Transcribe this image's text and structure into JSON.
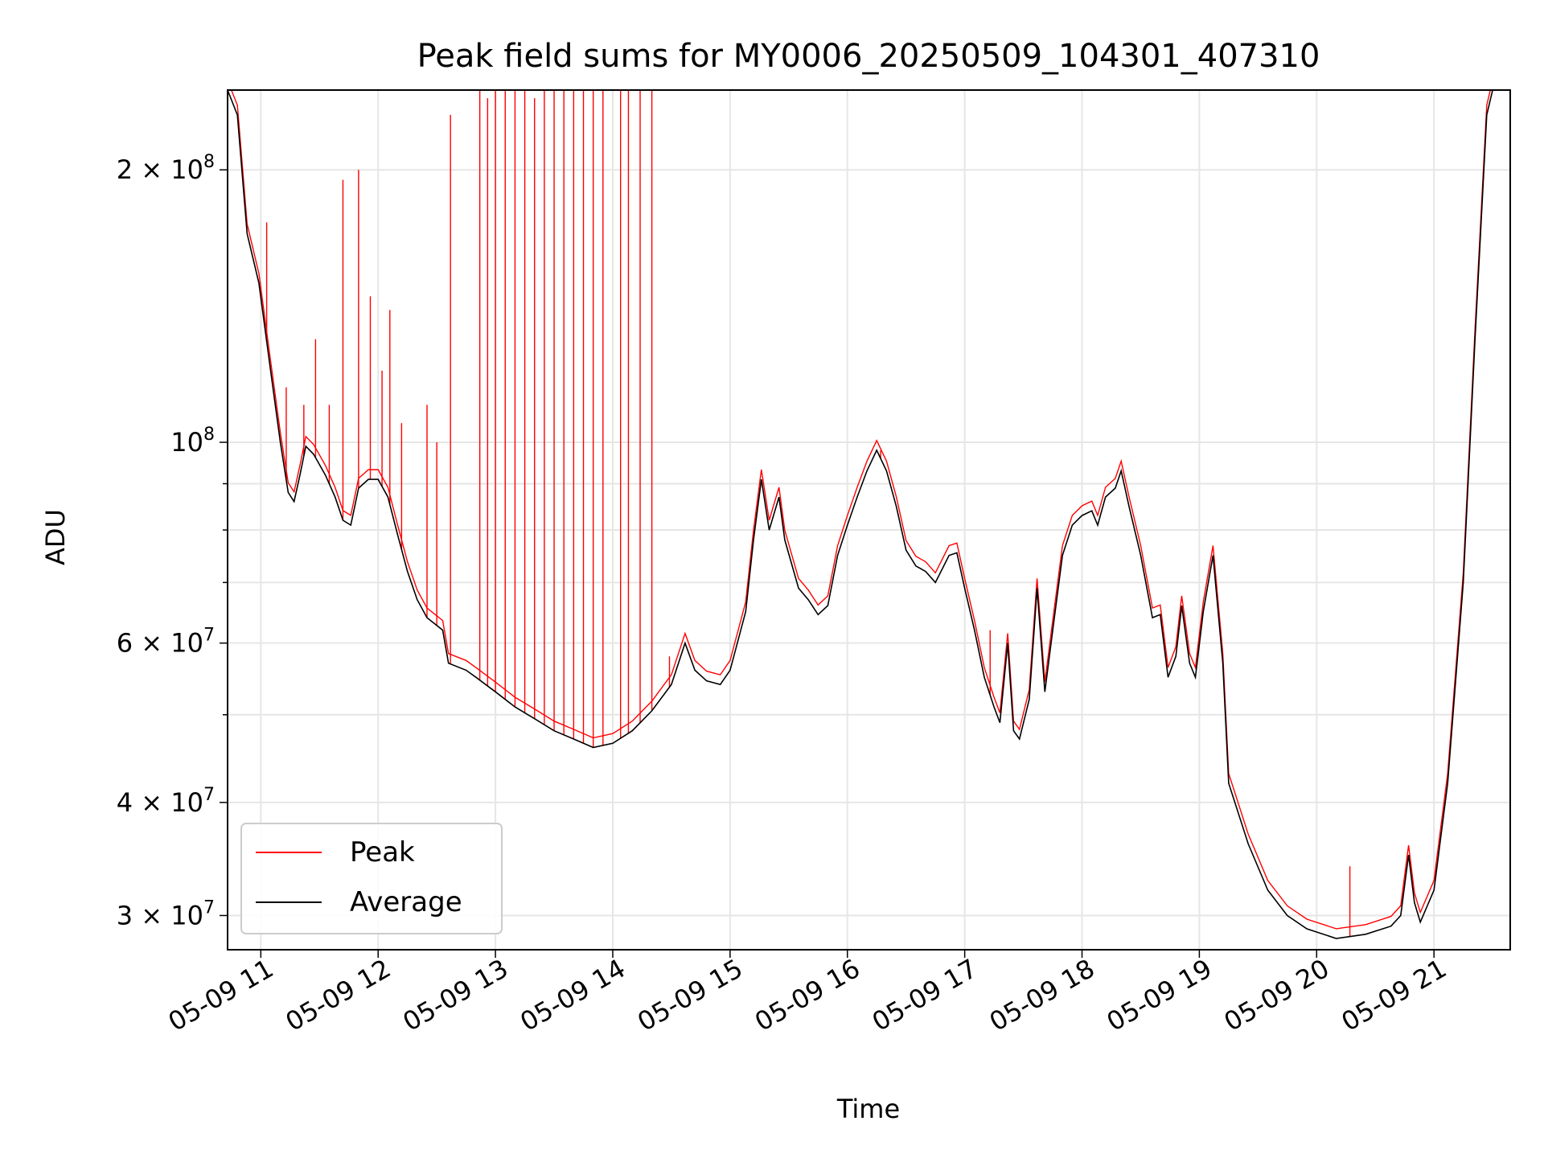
{
  "chart_data": {
    "type": "line",
    "title": "Peak field sums for MY0006_20250509_104301_407310",
    "xlabel": "Time",
    "ylabel": "ADU",
    "yscale": "log",
    "ylim": [
      27500000,
      245000000
    ],
    "xlim": [
      "2025-05-09 10:43:00",
      "2025-05-09 21:39:00"
    ],
    "grid": true,
    "legend_position": "lower-left",
    "x_tick_labels": [
      "05-09 11",
      "05-09 12",
      "05-09 13",
      "05-09 14",
      "05-09 15",
      "05-09 16",
      "05-09 17",
      "05-09 18",
      "05-09 19",
      "05-09 20",
      "05-09 21"
    ],
    "y_tick_labels": [
      {
        "value": 30000000,
        "mant": "3",
        "exp": "7"
      },
      {
        "value": 40000000,
        "mant": "4",
        "exp": "7"
      },
      {
        "value": 60000000,
        "mant": "6",
        "exp": "7"
      },
      {
        "value": 100000000,
        "mant": "",
        "exp": "8"
      },
      {
        "value": 200000000,
        "mant": "2",
        "exp": "8"
      }
    ],
    "series": [
      {
        "name": "Average",
        "color": "#000000",
        "points": [
          [
            "2025-05-09 10:43",
            245000000
          ],
          [
            "2025-05-09 10:48",
            230000000
          ],
          [
            "2025-05-09 10:53",
            170000000
          ],
          [
            "2025-05-09 10:59",
            150000000
          ],
          [
            "2025-05-09 11:05",
            120000000
          ],
          [
            "2025-05-09 11:10",
            100000000
          ],
          [
            "2025-05-09 11:14",
            88000000
          ],
          [
            "2025-05-09 11:17",
            86000000
          ],
          [
            "2025-05-09 11:20",
            92000000
          ],
          [
            "2025-05-09 11:23",
            99000000
          ],
          [
            "2025-05-09 11:27",
            97000000
          ],
          [
            "2025-05-09 11:33",
            92000000
          ],
          [
            "2025-05-09 11:38",
            87000000
          ],
          [
            "2025-05-09 11:42",
            82000000
          ],
          [
            "2025-05-09 11:46",
            81000000
          ],
          [
            "2025-05-09 11:50",
            89000000
          ],
          [
            "2025-05-09 11:55",
            91000000
          ],
          [
            "2025-05-09 12:00",
            91000000
          ],
          [
            "2025-05-09 12:05",
            87000000
          ],
          [
            "2025-05-09 12:10",
            79000000
          ],
          [
            "2025-05-09 12:15",
            72000000
          ],
          [
            "2025-05-09 12:20",
            67000000
          ],
          [
            "2025-05-09 12:25",
            64000000
          ],
          [
            "2025-05-09 12:33",
            62000000
          ],
          [
            "2025-05-09 12:36",
            57000000
          ],
          [
            "2025-05-09 12:45",
            56000000
          ],
          [
            "2025-05-09 12:50",
            55000000
          ],
          [
            "2025-05-09 13:00",
            53000000
          ],
          [
            "2025-05-09 13:10",
            51000000
          ],
          [
            "2025-05-09 13:20",
            49500000
          ],
          [
            "2025-05-09 13:30",
            48000000
          ],
          [
            "2025-05-09 13:40",
            47000000
          ],
          [
            "2025-05-09 13:50",
            46000000
          ],
          [
            "2025-05-09 14:00",
            46500000
          ],
          [
            "2025-05-09 14:10",
            48000000
          ],
          [
            "2025-05-09 14:20",
            50500000
          ],
          [
            "2025-05-09 14:30",
            54000000
          ],
          [
            "2025-05-09 14:37",
            60000000
          ],
          [
            "2025-05-09 14:42",
            56000000
          ],
          [
            "2025-05-09 14:48",
            54500000
          ],
          [
            "2025-05-09 14:55",
            54000000
          ],
          [
            "2025-05-09 15:00",
            56000000
          ],
          [
            "2025-05-09 15:08",
            65000000
          ],
          [
            "2025-05-09 15:12",
            78000000
          ],
          [
            "2025-05-09 15:16",
            91000000
          ],
          [
            "2025-05-09 15:20",
            80000000
          ],
          [
            "2025-05-09 15:25",
            87000000
          ],
          [
            "2025-05-09 15:28",
            78000000
          ],
          [
            "2025-05-09 15:35",
            69000000
          ],
          [
            "2025-05-09 15:40",
            67000000
          ],
          [
            "2025-05-09 15:45",
            64500000
          ],
          [
            "2025-05-09 15:50",
            66000000
          ],
          [
            "2025-05-09 15:55",
            75000000
          ],
          [
            "2025-05-09 16:00",
            81000000
          ],
          [
            "2025-05-09 16:05",
            87000000
          ],
          [
            "2025-05-09 16:10",
            93000000
          ],
          [
            "2025-05-09 16:15",
            98000000
          ],
          [
            "2025-05-09 16:20",
            93000000
          ],
          [
            "2025-05-09 16:25",
            85000000
          ],
          [
            "2025-05-09 16:30",
            76000000
          ],
          [
            "2025-05-09 16:35",
            73000000
          ],
          [
            "2025-05-09 16:40",
            72000000
          ],
          [
            "2025-05-09 16:45",
            70000000
          ],
          [
            "2025-05-09 16:52",
            75000000
          ],
          [
            "2025-05-09 16:56",
            75500000
          ],
          [
            "2025-05-09 17:00",
            69000000
          ],
          [
            "2025-05-09 17:05",
            62000000
          ],
          [
            "2025-05-09 17:10",
            55000000
          ],
          [
            "2025-05-09 17:15",
            51000000
          ],
          [
            "2025-05-09 17:18",
            49000000
          ],
          [
            "2025-05-09 17:22",
            60000000
          ],
          [
            "2025-05-09 17:25",
            48000000
          ],
          [
            "2025-05-09 17:28",
            47000000
          ],
          [
            "2025-05-09 17:33",
            52000000
          ],
          [
            "2025-05-09 17:37",
            69000000
          ],
          [
            "2025-05-09 17:41",
            53000000
          ],
          [
            "2025-05-09 17:45",
            62000000
          ],
          [
            "2025-05-09 17:50",
            75000000
          ],
          [
            "2025-05-09 17:55",
            81000000
          ],
          [
            "2025-05-09 18:00",
            83000000
          ],
          [
            "2025-05-09 18:05",
            84000000
          ],
          [
            "2025-05-09 18:08",
            81000000
          ],
          [
            "2025-05-09 18:12",
            87000000
          ],
          [
            "2025-05-09 18:17",
            89000000
          ],
          [
            "2025-05-09 18:20",
            93000000
          ],
          [
            "2025-05-09 18:24",
            85000000
          ],
          [
            "2025-05-09 18:30",
            75000000
          ],
          [
            "2025-05-09 18:36",
            64000000
          ],
          [
            "2025-05-09 18:40",
            64500000
          ],
          [
            "2025-05-09 18:44",
            55000000
          ],
          [
            "2025-05-09 18:48",
            58000000
          ],
          [
            "2025-05-09 18:51",
            66000000
          ],
          [
            "2025-05-09 18:55",
            57000000
          ],
          [
            "2025-05-09 18:58",
            55000000
          ],
          [
            "2025-05-09 19:02",
            65000000
          ],
          [
            "2025-05-09 19:07",
            75000000
          ],
          [
            "2025-05-09 19:12",
            57000000
          ],
          [
            "2025-05-09 19:15",
            42000000
          ],
          [
            "2025-05-09 19:25",
            36000000
          ],
          [
            "2025-05-09 19:35",
            32000000
          ],
          [
            "2025-05-09 19:45",
            30000000
          ],
          [
            "2025-05-09 19:55",
            29000000
          ],
          [
            "2025-05-09 20:10",
            28300000
          ],
          [
            "2025-05-09 20:25",
            28600000
          ],
          [
            "2025-05-09 20:38",
            29200000
          ],
          [
            "2025-05-09 20:43",
            30000000
          ],
          [
            "2025-05-09 20:47",
            35000000
          ],
          [
            "2025-05-09 20:50",
            31000000
          ],
          [
            "2025-05-09 20:53",
            29500000
          ],
          [
            "2025-05-09 21:00",
            32000000
          ],
          [
            "2025-05-09 21:07",
            42000000
          ],
          [
            "2025-05-09 21:15",
            70000000
          ],
          [
            "2025-05-09 21:21",
            130000000
          ],
          [
            "2025-05-09 21:27",
            230000000
          ],
          [
            "2025-05-09 21:30",
            245000000
          ]
        ]
      },
      {
        "name": "Peak",
        "color": "#ff0000",
        "spikes": [
          [
            "2025-05-09 11:03",
            175000000
          ],
          [
            "2025-05-09 11:13",
            115000000
          ],
          [
            "2025-05-09 11:22",
            110000000
          ],
          [
            "2025-05-09 11:28",
            130000000
          ],
          [
            "2025-05-09 11:35",
            110000000
          ],
          [
            "2025-05-09 11:42",
            195000000
          ],
          [
            "2025-05-09 11:50",
            200000000
          ],
          [
            "2025-05-09 11:56",
            145000000
          ],
          [
            "2025-05-09 12:02",
            120000000
          ],
          [
            "2025-05-09 12:06",
            140000000
          ],
          [
            "2025-05-09 12:12",
            105000000
          ],
          [
            "2025-05-09 12:25",
            110000000
          ],
          [
            "2025-05-09 12:30",
            100000000
          ],
          [
            "2025-05-09 12:37",
            230000000
          ],
          [
            "2025-05-09 12:52",
            245000000
          ],
          [
            "2025-05-09 12:56",
            240000000
          ],
          [
            "2025-05-09 13:00",
            245000000
          ],
          [
            "2025-05-09 13:05",
            245000000
          ],
          [
            "2025-05-09 13:10",
            245000000
          ],
          [
            "2025-05-09 13:15",
            245000000
          ],
          [
            "2025-05-09 13:20",
            240000000
          ],
          [
            "2025-05-09 13:25",
            245000000
          ],
          [
            "2025-05-09 13:30",
            245000000
          ],
          [
            "2025-05-09 13:35",
            245000000
          ],
          [
            "2025-05-09 13:40",
            245000000
          ],
          [
            "2025-05-09 13:45",
            245000000
          ],
          [
            "2025-05-09 13:50",
            245000000
          ],
          [
            "2025-05-09 13:55",
            245000000
          ],
          [
            "2025-05-09 14:04",
            245000000
          ],
          [
            "2025-05-09 14:08",
            245000000
          ],
          [
            "2025-05-09 14:14",
            245000000
          ],
          [
            "2025-05-09 14:20",
            245000000
          ],
          [
            "2025-05-09 14:29",
            58000000
          ],
          [
            "2025-05-09 16:17",
            98000000
          ],
          [
            "2025-05-09 17:13",
            62000000
          ],
          [
            "2025-05-09 20:17",
            34000000
          ]
        ]
      }
    ]
  }
}
